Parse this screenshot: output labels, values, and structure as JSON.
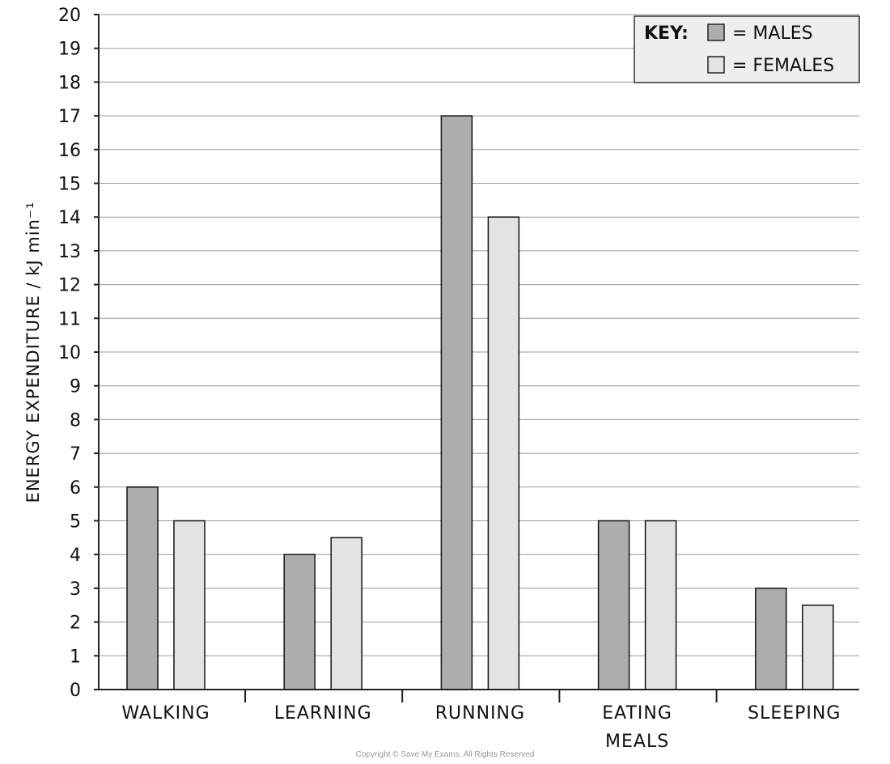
{
  "chart_data": {
    "type": "bar",
    "categories": [
      [
        "WALKING"
      ],
      [
        "LEARNING"
      ],
      [
        "RUNNING"
      ],
      [
        "EATING",
        "MEALS"
      ],
      [
        "SLEEPING"
      ]
    ],
    "series": [
      {
        "name": "MALES",
        "values": [
          6,
          4,
          17,
          5,
          3
        ],
        "color": "#adadad"
      },
      {
        "name": "FEMALES",
        "values": [
          5,
          4.5,
          14,
          5,
          2.5
        ],
        "color": "#e3e3e3"
      }
    ],
    "ylabel": "ENERGY  EXPENDITURE / kJ min⁻¹",
    "xlabel": "",
    "ylim": [
      0,
      20
    ],
    "yticks": [
      0,
      1,
      2,
      3,
      4,
      5,
      6,
      7,
      8,
      9,
      10,
      11,
      12,
      13,
      14,
      15,
      16,
      17,
      18,
      19,
      20
    ],
    "grid": true,
    "legend": {
      "position": "top-right",
      "title": "KEY:",
      "entries": [
        "= MALES",
        "= FEMALES"
      ]
    }
  },
  "copyright": "Copyright © Save My Exams. All Rights Reserved"
}
